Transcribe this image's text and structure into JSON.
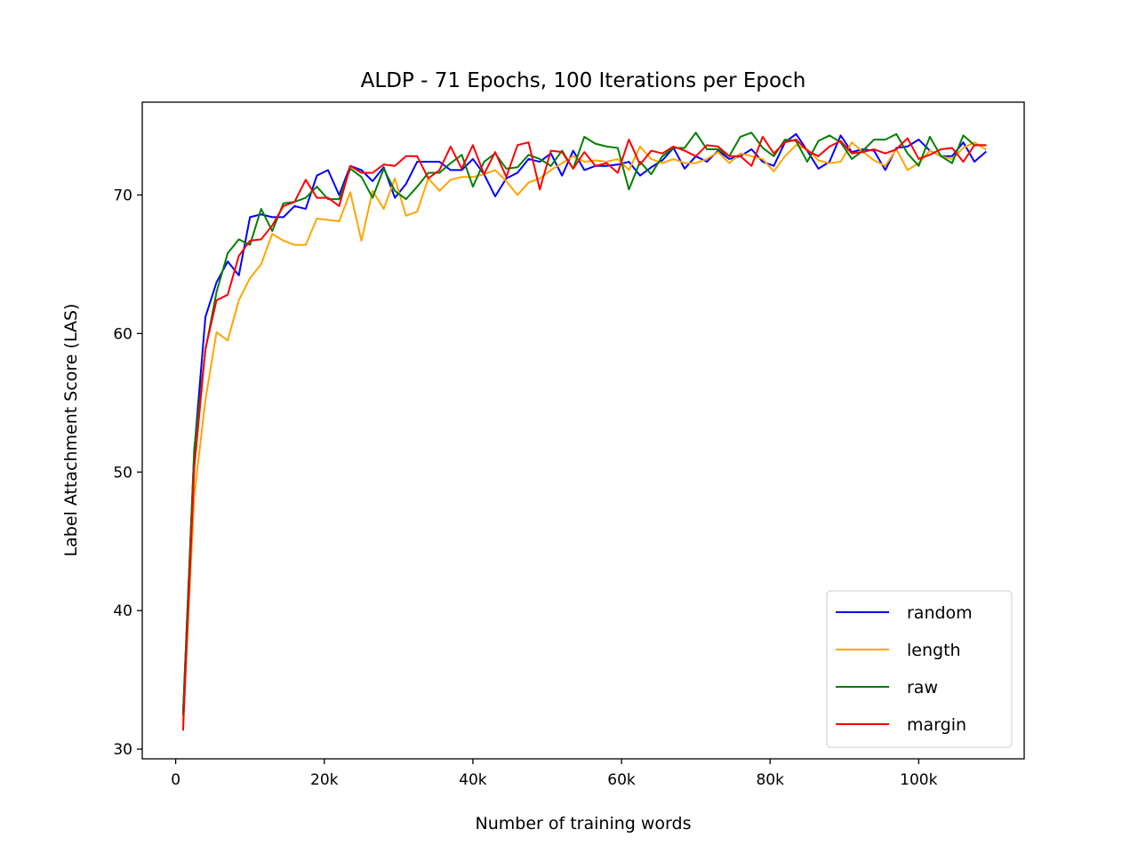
{
  "chart_data": {
    "type": "line",
    "title": "ALDP - 71 Epochs, 100 Iterations per Epoch",
    "xlabel": "Number of training words",
    "ylabel": "Label Attachment Score (LAS)",
    "xlim": [
      -4500,
      114200
    ],
    "ylim": [
      29.3,
      76.7
    ],
    "xticks": [
      {
        "value": 0,
        "label": "0"
      },
      {
        "value": 20000,
        "label": "20k"
      },
      {
        "value": 40000,
        "label": "40k"
      },
      {
        "value": 60000,
        "label": "60k"
      },
      {
        "value": 80000,
        "label": "80k"
      },
      {
        "value": 100000,
        "label": "100k"
      }
    ],
    "yticks": [
      {
        "value": 30,
        "label": "30"
      },
      {
        "value": 40,
        "label": "40"
      },
      {
        "value": 50,
        "label": "50"
      },
      {
        "value": 60,
        "label": "60"
      },
      {
        "value": 70,
        "label": "70"
      }
    ],
    "grid": false,
    "legend_position": "bottom-right",
    "x": [
      1000,
      2500,
      4000,
      5500,
      7000,
      8500,
      10000,
      11500,
      13000,
      14500,
      16000,
      17500,
      19000,
      20500,
      22000,
      23500,
      25000,
      26500,
      28000,
      29500,
      31000,
      32500,
      34000,
      35500,
      37000,
      38500,
      40000,
      41500,
      43000,
      44500,
      46000,
      47500,
      49000,
      50500,
      52000,
      53500,
      55000,
      56500,
      58000,
      59500,
      61000,
      62500,
      64000,
      65500,
      67000,
      68500,
      70000,
      71500,
      73000,
      74500,
      76000,
      77500,
      79000,
      80500,
      82000,
      83500,
      85000,
      86500,
      88000,
      89500,
      91000,
      92500,
      94000,
      95500,
      97000,
      98500,
      100000,
      101500,
      103000,
      104500,
      106000,
      107500,
      109000
    ],
    "series": [
      {
        "name": "random",
        "color": "#0000ff",
        "values": [
          32.7,
          51.5,
          61.2,
          63.7,
          65.2,
          64.2,
          68.4,
          68.6,
          68.4,
          68.4,
          69.2,
          69.0,
          71.4,
          71.8,
          70.0,
          72.1,
          71.8,
          71.0,
          72.0,
          69.8,
          70.8,
          72.4,
          72.4,
          72.4,
          71.8,
          71.8,
          72.6,
          71.5,
          69.9,
          71.2,
          71.6,
          72.6,
          72.4,
          73.0,
          71.4,
          73.2,
          71.8,
          72.1,
          72.1,
          72.2,
          72.4,
          71.4,
          72.0,
          72.5,
          73.4,
          71.9,
          72.8,
          72.4,
          73.2,
          72.6,
          72.8,
          73.3,
          72.4,
          72.1,
          73.8,
          74.4,
          73.2,
          71.9,
          72.4,
          74.3,
          73.1,
          73.3,
          73.2,
          71.8,
          73.4,
          73.5,
          74.0,
          73.2,
          72.8,
          72.8,
          73.8,
          72.4,
          73.1
        ]
      },
      {
        "name": "length",
        "color": "#ffa500",
        "values": [
          32.0,
          48.3,
          55.2,
          60.1,
          59.5,
          62.4,
          64.0,
          65.0,
          67.2,
          66.7,
          66.4,
          66.4,
          68.3,
          68.2,
          68.1,
          70.2,
          66.7,
          70.3,
          69.0,
          71.2,
          68.5,
          68.8,
          71.2,
          70.3,
          71.1,
          71.3,
          71.3,
          71.5,
          71.8,
          71.0,
          70.0,
          70.9,
          71.2,
          71.8,
          72.3,
          72.8,
          72.4,
          72.5,
          72.4,
          72.6,
          71.8,
          73.5,
          72.6,
          72.3,
          72.6,
          72.3,
          72.3,
          72.6,
          73.1,
          72.3,
          73.0,
          72.8,
          72.6,
          71.7,
          72.8,
          73.6,
          73.3,
          72.5,
          72.3,
          72.4,
          73.8,
          73.1,
          72.5,
          72.1,
          73.3,
          71.8,
          72.3,
          73.2,
          72.8,
          72.6,
          73.4,
          73.8,
          73.3
        ]
      },
      {
        "name": "raw",
        "color": "#008000",
        "values": [
          32.5,
          51.7,
          58.8,
          63.0,
          65.8,
          66.8,
          66.4,
          69.0,
          67.4,
          69.4,
          69.5,
          69.8,
          70.6,
          69.7,
          69.7,
          71.9,
          71.3,
          69.8,
          71.9,
          70.3,
          69.7,
          70.6,
          71.6,
          71.6,
          72.3,
          72.9,
          70.6,
          72.4,
          73.0,
          71.9,
          72.0,
          72.9,
          72.6,
          72.1,
          73.2,
          71.9,
          74.2,
          73.7,
          73.5,
          73.4,
          70.4,
          72.4,
          71.5,
          72.8,
          73.4,
          73.4,
          74.5,
          73.3,
          73.3,
          72.8,
          74.2,
          74.5,
          73.4,
          72.8,
          74.0,
          73.9,
          72.4,
          73.9,
          74.3,
          73.8,
          72.6,
          73.2,
          74.0,
          74.0,
          74.4,
          73.0,
          72.1,
          74.2,
          72.8,
          72.3,
          74.3,
          73.6,
          73.6
        ]
      },
      {
        "name": "margin",
        "color": "#ff0000",
        "values": [
          31.4,
          50.3,
          58.9,
          62.4,
          62.8,
          65.6,
          66.7,
          66.8,
          67.8,
          69.2,
          69.5,
          71.1,
          69.8,
          69.8,
          69.2,
          72.1,
          71.6,
          71.6,
          72.2,
          72.1,
          72.8,
          72.8,
          71.2,
          71.8,
          73.5,
          71.9,
          73.6,
          71.5,
          73.1,
          71.3,
          73.6,
          73.8,
          70.4,
          73.2,
          73.1,
          71.9,
          73.1,
          72.1,
          72.3,
          71.6,
          74.0,
          72.2,
          73.2,
          73.0,
          73.5,
          73.2,
          72.8,
          73.6,
          73.5,
          72.8,
          72.8,
          72.1,
          74.2,
          73.0,
          73.8,
          74.0,
          73.2,
          72.8,
          73.5,
          73.9,
          73.0,
          73.1,
          73.3,
          73.0,
          73.3,
          74.1,
          72.6,
          72.9,
          73.3,
          73.4,
          72.4,
          73.6,
          73.6
        ]
      }
    ]
  }
}
